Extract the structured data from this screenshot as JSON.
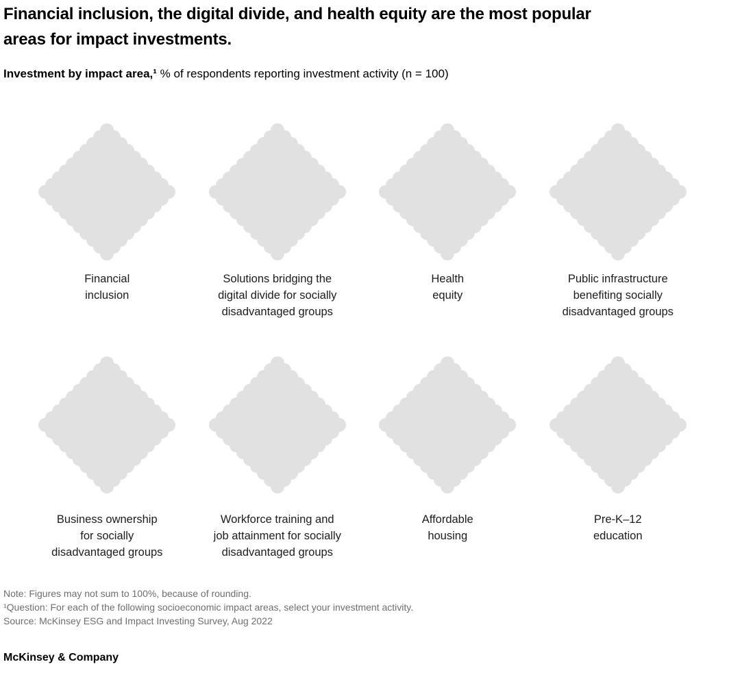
{
  "header": {
    "title": "Financial inclusion, the digital divide, and health equity are the most popular\nareas for impact investments.",
    "subtitle_bold": "Investment by impact area,¹",
    "subtitle_rest": " % of respondents reporting investment activity (n = 100)"
  },
  "chart_data": {
    "type": "waffle",
    "variant": "diamond dot matrix: 10×10 unit grid rotated 45°, one diamond per category",
    "grid_side": 10,
    "dots_per_diamond": 100,
    "n_respondents": 100,
    "dot_color": "#e1e1e1",
    "values_shown": "all dots uniform gray; no per-category percentages displayed",
    "categories": [
      "Financial\ninclusion",
      "Solutions bridging the\ndigital divide for socially\ndisadvantaged groups",
      "Health\nequity",
      "Public infrastructure\nbenefiting socially\ndisadvantaged groups",
      "Business ownership\nfor socially\ndisadvantaged groups",
      "Workforce training and\njob attainment for socially\ndisadvantaged groups",
      "Affordable\nhousing",
      "Pre-K–12\neducation"
    ]
  },
  "footnotes": {
    "note": "Note: Figures may not sum to 100%, because of rounding.",
    "question": "¹Question: For each of the following socioeconomic impact areas, select your investment activity.",
    "source": "Source: McKinsey ESG and Impact Investing Survey, Aug 2022"
  },
  "footer": {
    "brand": "McKinsey & Company"
  }
}
